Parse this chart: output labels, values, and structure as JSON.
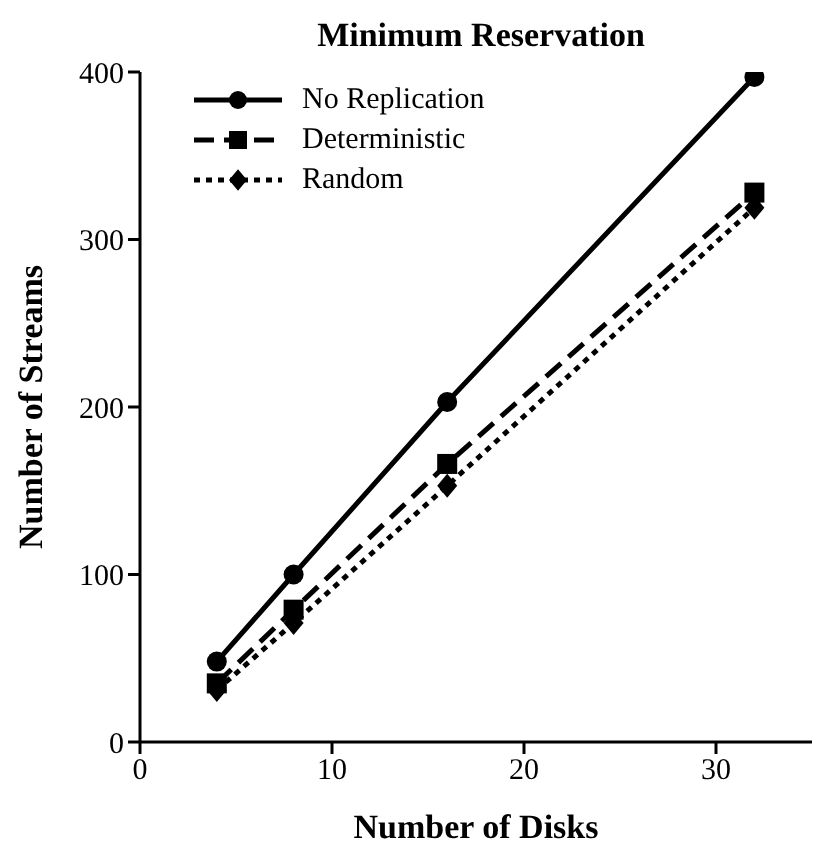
{
  "chart_data": {
    "type": "line",
    "title": "Minimum Reservation",
    "xlabel": "Number of Disks",
    "ylabel": "Number of Streams",
    "x": [
      4,
      8,
      16,
      32
    ],
    "xlim": [
      0,
      35
    ],
    "xticks": [
      0,
      10,
      20,
      30
    ],
    "ylim": [
      0,
      400
    ],
    "yticks": [
      0,
      100,
      200,
      300,
      400
    ],
    "grid": false,
    "legend": "top left",
    "series": [
      {
        "name": "No Replication",
        "color": "#000000",
        "values": [
          48,
          100,
          203,
          397
        ],
        "marker": "circle",
        "line_style": "solid"
      },
      {
        "name": "Deterministic",
        "color": "#000000",
        "values": [
          35,
          79,
          166,
          328
        ],
        "marker": "square",
        "line_style": "dashed"
      },
      {
        "name": "Random",
        "color": "#000000",
        "values": [
          31,
          71,
          153,
          319
        ],
        "marker": "diamond",
        "line_style": "dotted"
      }
    ]
  }
}
